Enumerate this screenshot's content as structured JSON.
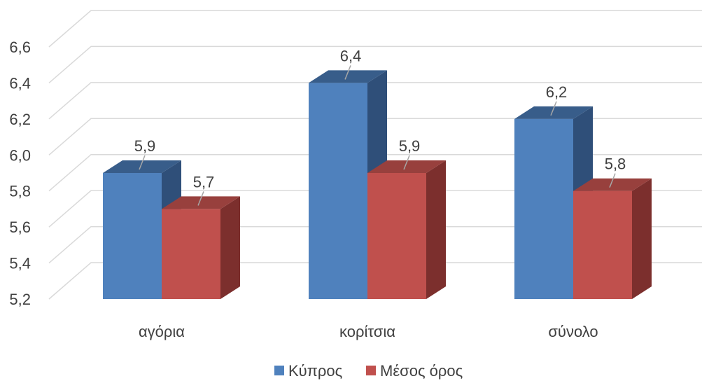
{
  "chart_data": {
    "type": "bar",
    "categories": [
      "αγόρια",
      "κορίτσια",
      "σύνολο"
    ],
    "series": [
      {
        "name": "Κύπρος",
        "values": [
          5.9,
          6.4,
          6.2
        ],
        "labels": [
          "5,9",
          "6,4",
          "6,2"
        ],
        "color": "#4f81bd",
        "side_color": "#2f4f79",
        "top_color": "#385d8a"
      },
      {
        "name": "Μέσος όρος",
        "values": [
          5.7,
          5.9,
          5.8
        ],
        "labels": [
          "5,7",
          "5,9",
          "5,8"
        ],
        "color": "#c0504d",
        "side_color": "#7c2f2d",
        "top_color": "#98403d"
      }
    ],
    "ylim": [
      5.2,
      6.6
    ],
    "yticks": [
      5.2,
      5.4,
      5.6,
      5.8,
      6.0,
      6.2,
      6.4,
      6.6
    ],
    "ytick_labels": [
      "5,2",
      "5,4",
      "5,6",
      "5,8",
      "6,0",
      "6,2",
      "6,4",
      "6,6"
    ],
    "grid": true,
    "legend_position": "bottom",
    "three_d": true
  }
}
